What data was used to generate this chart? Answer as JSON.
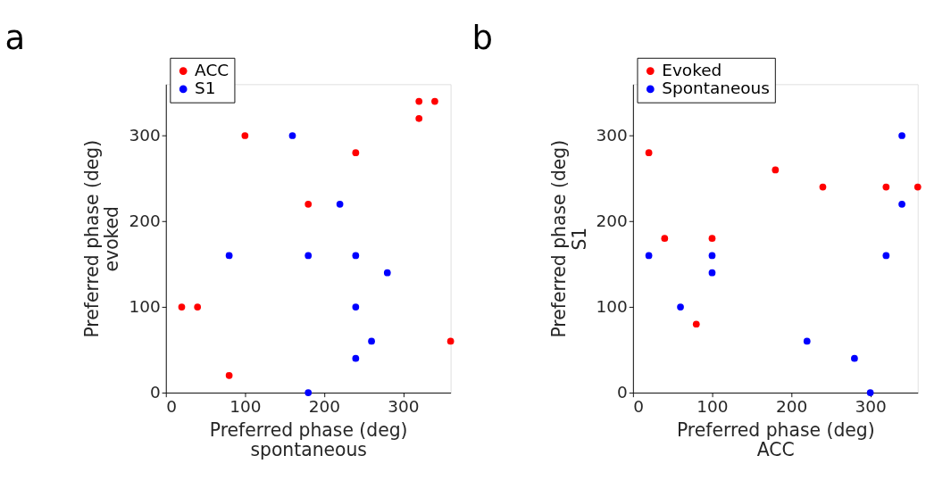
{
  "chart_data": [
    {
      "type": "scatter",
      "title": "a",
      "xlabel": "Preferred phase (deg)\nspontaneous",
      "ylabel": "Preferred phase (deg)\nevoked",
      "xlim": [
        0,
        360
      ],
      "ylim": [
        0,
        360
      ],
      "xticks": [
        0,
        100,
        200,
        300
      ],
      "yticks": [
        0,
        100,
        200,
        300
      ],
      "grid": false,
      "legend": "top left",
      "marker": "circle",
      "series": [
        {
          "name": "ACC",
          "color": "#ff0000",
          "x": [
            20,
            40,
            80,
            100,
            180,
            240,
            320,
            340,
            320,
            360
          ],
          "values": [
            100,
            100,
            20,
            300,
            220,
            280,
            340,
            340,
            320,
            60
          ]
        },
        {
          "name": "S1",
          "color": "#0000ff",
          "x": [
            160,
            220,
            80,
            180,
            240,
            280,
            240,
            260,
            240,
            180
          ],
          "values": [
            300,
            220,
            160,
            160,
            160,
            140,
            100,
            60,
            40,
            0
          ]
        }
      ]
    },
    {
      "type": "scatter",
      "title": "b",
      "xlabel": "Preferred phase (deg)\nACC",
      "ylabel": "Preferred phase (deg)\nS1",
      "xlim": [
        0,
        360
      ],
      "ylim": [
        0,
        360
      ],
      "xticks": [
        0,
        100,
        200,
        300
      ],
      "yticks": [
        0,
        100,
        200,
        300
      ],
      "grid": false,
      "legend": "top left",
      "marker": "circle",
      "series": [
        {
          "name": "Evoked",
          "color": "#ff0000",
          "x": [
            20,
            40,
            80,
            100,
            180,
            240,
            320,
            360
          ],
          "values": [
            280,
            180,
            80,
            180,
            260,
            240,
            240,
            240
          ]
        },
        {
          "name": "Spontaneous",
          "color": "#0000ff",
          "x": [
            20,
            60,
            100,
            100,
            220,
            280,
            300,
            320,
            340,
            340
          ],
          "values": [
            160,
            100,
            160,
            140,
            60,
            40,
            0,
            160,
            300,
            220
          ]
        }
      ]
    }
  ]
}
